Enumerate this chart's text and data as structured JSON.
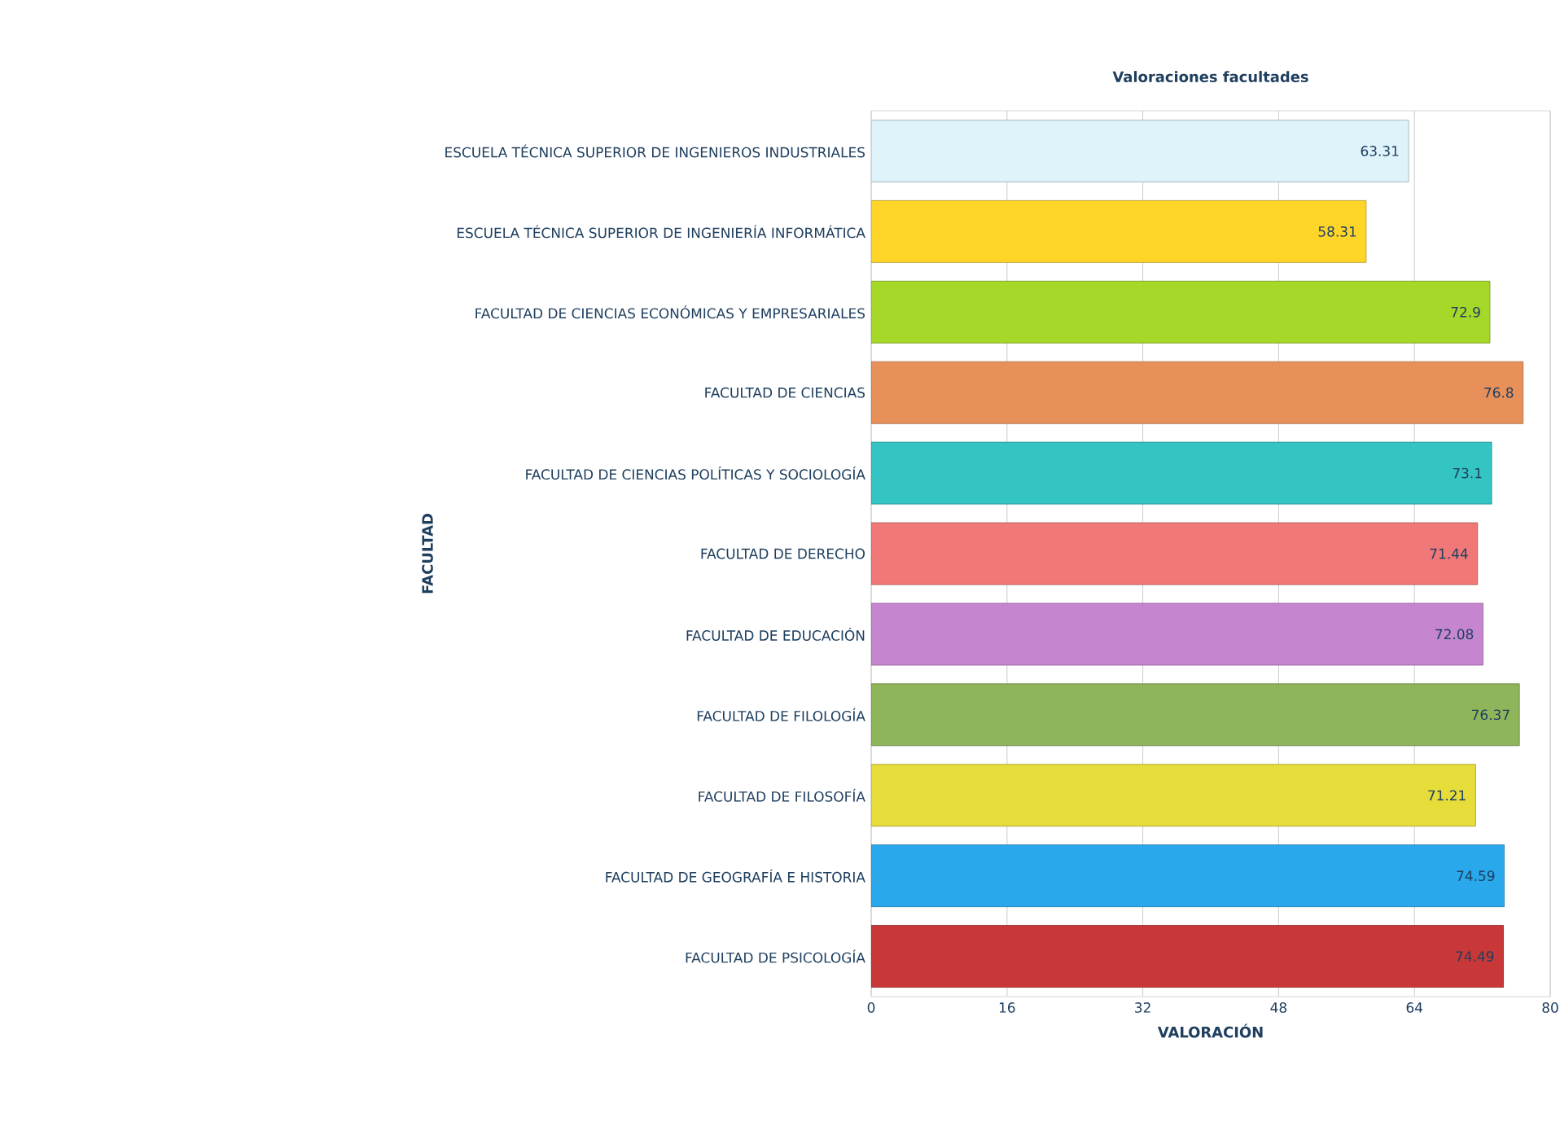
{
  "chart_data": {
    "type": "bar",
    "orientation": "horizontal",
    "title": "Valoraciones facultades",
    "xlabel": "VALORACIÓN",
    "ylabel": "FACULTAD",
    "categories": [
      "ESCUELA TÉCNICA SUPERIOR DE INGENIEROS INDUSTRIALES",
      "ESCUELA TÉCNICA SUPERIOR DE INGENIERÍA INFORMÁTICA",
      "FACULTAD DE CIENCIAS ECONÓMICAS Y EMPRESARIALES",
      "FACULTAD DE CIENCIAS",
      "FACULTAD DE CIENCIAS POLÍTICAS Y SOCIOLOGÍA",
      "FACULTAD DE DERECHO",
      "FACULTAD DE EDUCACIÓN",
      "FACULTAD DE FILOLOGÍA",
      "FACULTAD DE FILOSOFÍA",
      "FACULTAD DE GEOGRAFÍA E HISTORIA",
      "FACULTAD DE PSICOLOGÍA"
    ],
    "values": [
      63.31,
      58.31,
      72.9,
      76.8,
      73.1,
      71.44,
      72.08,
      76.37,
      71.21,
      74.59,
      74.49
    ],
    "colors": [
      "#dff3fb",
      "#ffd52a",
      "#a6d82a",
      "#e8905a",
      "#35c4c4",
      "#f07878",
      "#c585cf",
      "#8fb55a",
      "#e6dc3a",
      "#2aa8ec",
      "#c83838"
    ],
    "xlim": [
      0,
      80
    ],
    "xticks": [
      0,
      16,
      32,
      48,
      64,
      80
    ],
    "grid": "x",
    "data_labels": true
  }
}
